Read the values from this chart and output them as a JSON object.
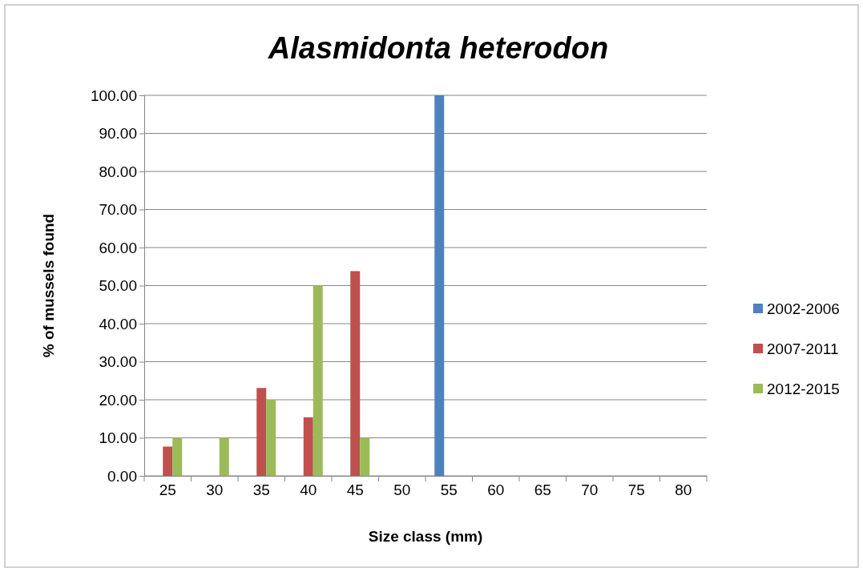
{
  "chart_data": {
    "type": "bar",
    "title": "Alasmidonta heterodon",
    "xlabel": "Size class (mm)",
    "ylabel": "% of mussels found",
    "categories": [
      "25",
      "30",
      "35",
      "40",
      "45",
      "50",
      "55",
      "60",
      "65",
      "70",
      "75",
      "80"
    ],
    "series": [
      {
        "name": "2002-2006",
        "color": "#4f81bd",
        "values": [
          null,
          null,
          null,
          null,
          null,
          null,
          100,
          null,
          null,
          null,
          null,
          null
        ]
      },
      {
        "name": "2007-2011",
        "color": "#c0504d",
        "values": [
          7.7,
          null,
          23.1,
          15.4,
          53.8,
          null,
          null,
          null,
          null,
          null,
          null,
          null
        ]
      },
      {
        "name": "2012-2015",
        "color": "#9bbb59",
        "values": [
          10,
          10,
          20,
          50,
          10,
          null,
          null,
          null,
          null,
          null,
          null,
          null
        ]
      }
    ],
    "ylim": [
      0,
      100
    ],
    "yticks": [
      {
        "value": 0,
        "label": "0.00"
      },
      {
        "value": 10,
        "label": "10.00"
      },
      {
        "value": 20,
        "label": "20.00"
      },
      {
        "value": 30,
        "label": "30.00"
      },
      {
        "value": 40,
        "label": "40.00"
      },
      {
        "value": 50,
        "label": "50.00"
      },
      {
        "value": 60,
        "label": "60.00"
      },
      {
        "value": 70,
        "label": "70.00"
      },
      {
        "value": 80,
        "label": "80.00"
      },
      {
        "value": 90,
        "label": "90.00"
      },
      {
        "value": 100,
        "label": "100.00"
      }
    ],
    "grid": "y",
    "legend": "right"
  }
}
